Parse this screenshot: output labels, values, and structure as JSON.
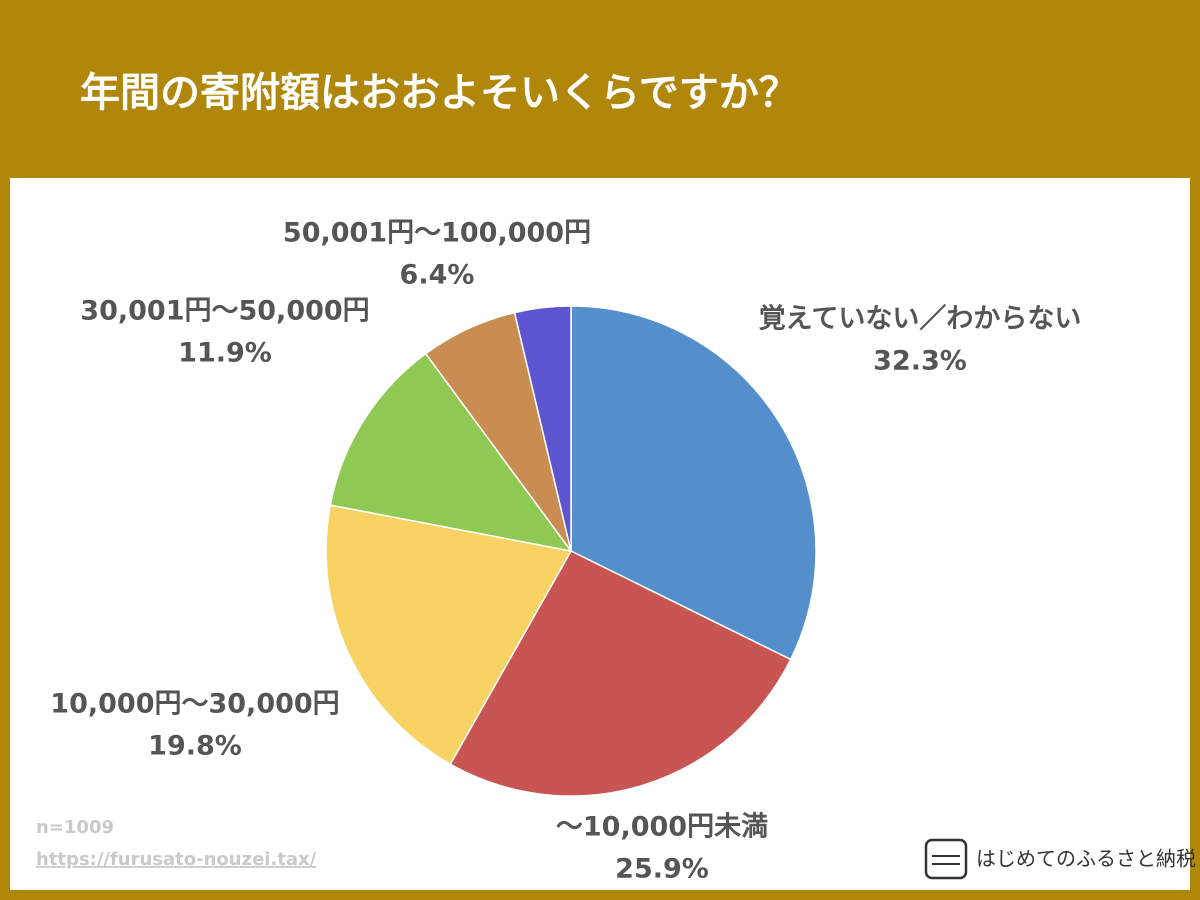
{
  "chart_data": {
    "type": "pie",
    "title": "年間の寄附額はおおよそいくらですか？",
    "categories": [
      "覚えていない／わからない",
      "～10,000円未満",
      "10,000円～30,000円",
      "30,001円～50,000円",
      "50,001円～100,000円",
      null
    ],
    "values": [
      32.3,
      25.9,
      19.8,
      11.9,
      6.4,
      3.7
    ],
    "value_labels": [
      "32.3%",
      "25.9%",
      "19.8%",
      "11.9%",
      "6.4%",
      null
    ],
    "colors": [
      "#548fcc",
      "#c85551",
      "#f9d264",
      "#8fc954",
      "#c98d52",
      "#5c55cf"
    ],
    "sample_note": "n=1009",
    "source": "https://furusato-nouzei.tax/",
    "brand": "はじめてのふるさと納税"
  }
}
